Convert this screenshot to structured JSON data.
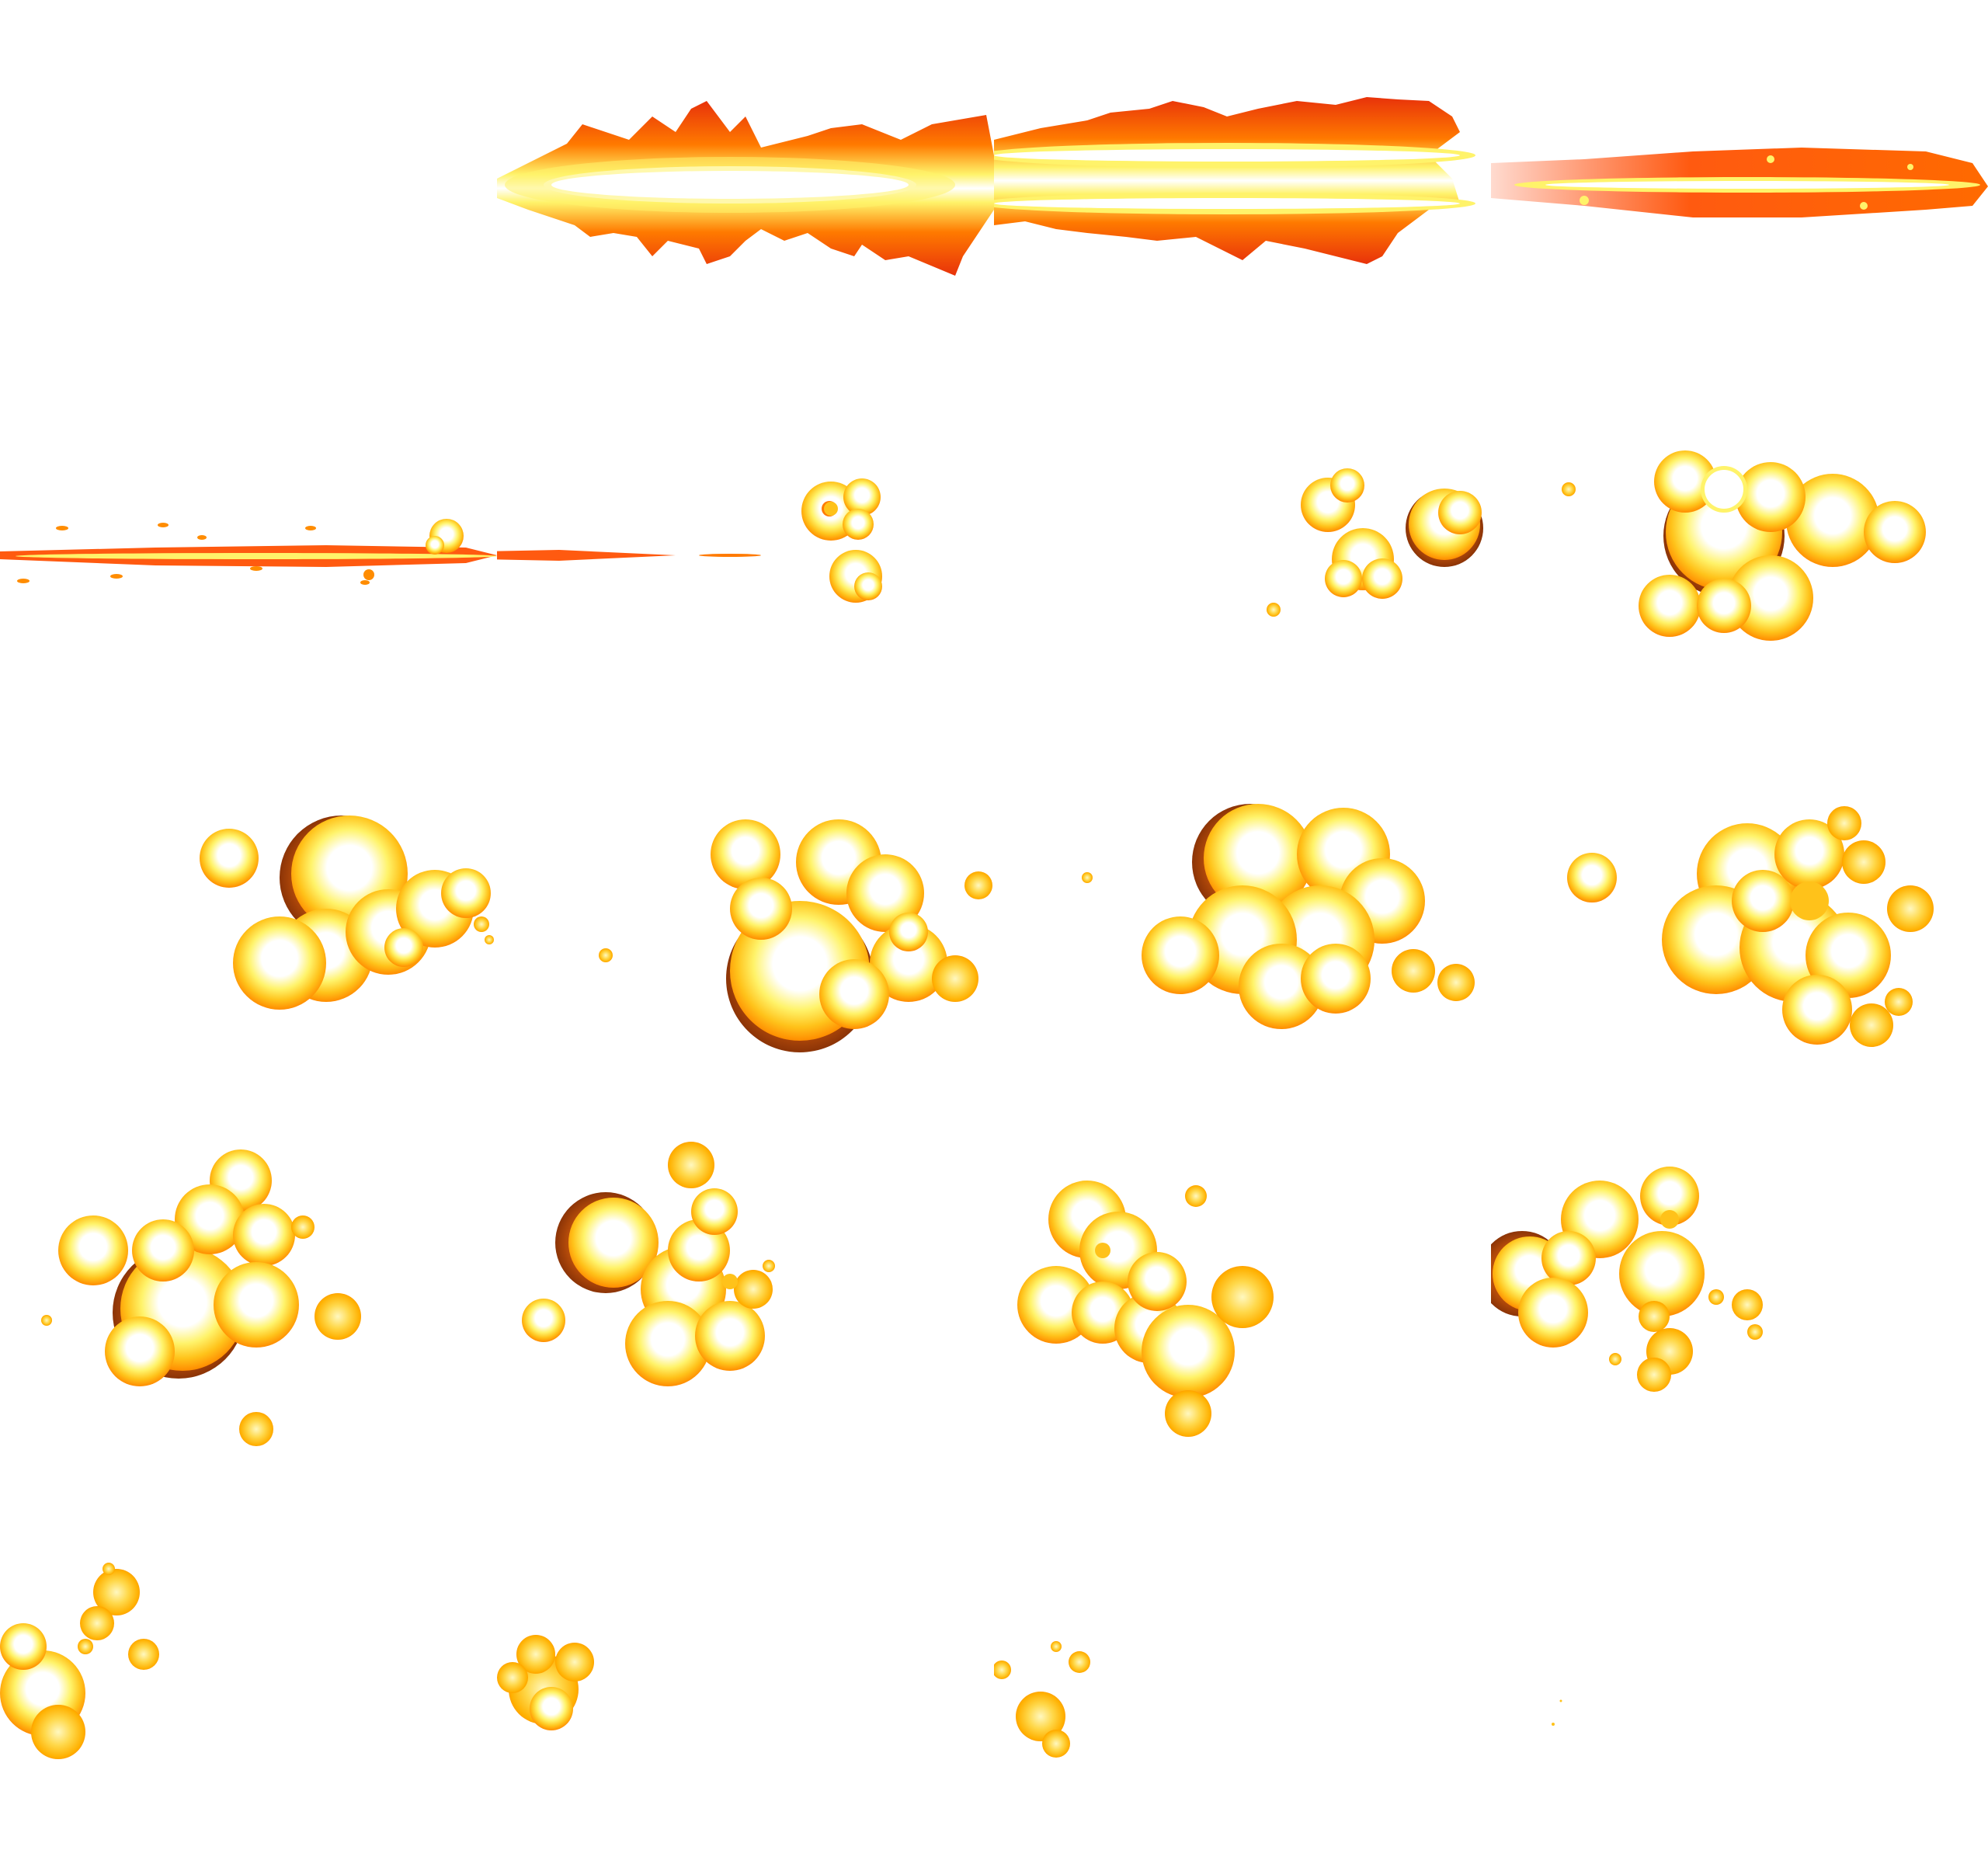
{
  "sheet": {
    "columns": 4,
    "rows": 5,
    "background": "#ffffff",
    "palette": {
      "core": "#ffffff",
      "hot": "#fff36a",
      "mid": "#ffc21a",
      "outer": "#ff7a00",
      "edge": "#e8320a",
      "smoke": "#b34a0a"
    },
    "frames": [
      {
        "index": 0,
        "kind": "empty"
      },
      {
        "index": 1,
        "kind": "muzzle-flash",
        "stage": "burst"
      },
      {
        "index": 2,
        "kind": "muzzle-flash",
        "stage": "spread"
      },
      {
        "index": 3,
        "kind": "muzzle-flash",
        "stage": "thin"
      },
      {
        "index": 4,
        "kind": "tracer",
        "stage": "streak"
      },
      {
        "index": 5,
        "kind": "explosion",
        "stage": "sparks"
      },
      {
        "index": 6,
        "kind": "explosion",
        "stage": "ignite"
      },
      {
        "index": 7,
        "kind": "explosion",
        "stage": "grow"
      },
      {
        "index": 8,
        "kind": "explosion",
        "stage": "expand-1"
      },
      {
        "index": 9,
        "kind": "explosion",
        "stage": "expand-2"
      },
      {
        "index": 10,
        "kind": "explosion",
        "stage": "peak-1"
      },
      {
        "index": 11,
        "kind": "explosion",
        "stage": "peak-2"
      },
      {
        "index": 12,
        "kind": "explosion",
        "stage": "billow-1"
      },
      {
        "index": 13,
        "kind": "explosion",
        "stage": "billow-2"
      },
      {
        "index": 14,
        "kind": "explosion",
        "stage": "decay-1"
      },
      {
        "index": 15,
        "kind": "explosion",
        "stage": "decay-2"
      },
      {
        "index": 16,
        "kind": "explosion",
        "stage": "dissipate-1"
      },
      {
        "index": 17,
        "kind": "explosion",
        "stage": "dissipate-2"
      },
      {
        "index": 18,
        "kind": "explosion",
        "stage": "dissipate-3"
      },
      {
        "index": 19,
        "kind": "explosion",
        "stage": "embers"
      }
    ]
  }
}
